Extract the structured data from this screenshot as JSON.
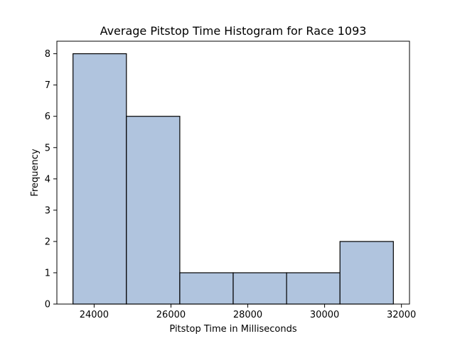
{
  "chart_data": {
    "type": "histogram",
    "title": "Average Pitstop Time Histogram for Race 1093",
    "xlabel": "Pitstop Time in Milliseconds",
    "ylabel": "Frequency",
    "bins": [
      {
        "start": 23450,
        "end": 24840,
        "count": 8
      },
      {
        "start": 24840,
        "end": 26230,
        "count": 6
      },
      {
        "start": 26230,
        "end": 27620,
        "count": 1
      },
      {
        "start": 27620,
        "end": 29010,
        "count": 1
      },
      {
        "start": 29010,
        "end": 30400,
        "count": 1
      },
      {
        "start": 30400,
        "end": 31790,
        "count": 2
      }
    ],
    "xlim": [
      23030,
      32210
    ],
    "ylim": [
      0,
      8.4
    ],
    "xticks": [
      24000,
      26000,
      28000,
      30000,
      32000
    ],
    "yticks": [
      0,
      1,
      2,
      3,
      4,
      5,
      6,
      7,
      8
    ],
    "bar_color": "#b0c4de",
    "edge_color": "#000000",
    "grid": false,
    "legend": "none"
  }
}
